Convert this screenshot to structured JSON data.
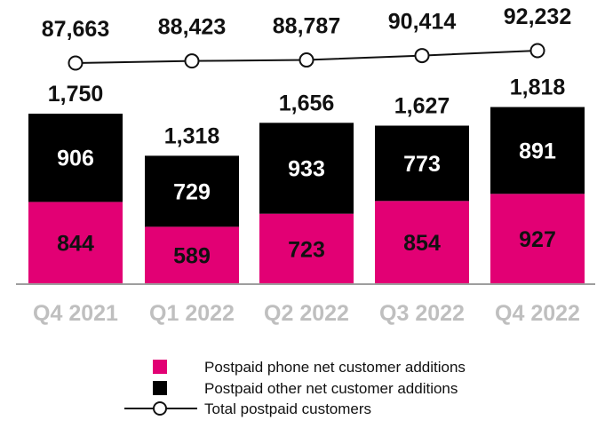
{
  "chart_data": {
    "type": "bar",
    "stacked": true,
    "categories": [
      "Q4 2021",
      "Q1 2022",
      "Q2 2022",
      "Q3 2022",
      "Q4 2022"
    ],
    "series": [
      {
        "name": "Postpaid phone net customer additions",
        "values": [
          844,
          589,
          723,
          854,
          927
        ],
        "color": "#e20074"
      },
      {
        "name": "Postpaid other net customer additions",
        "values": [
          906,
          729,
          933,
          773,
          891
        ],
        "color": "#000000"
      }
    ],
    "totals": [
      "1,750",
      "1,318",
      "1,656",
      "1,627",
      "1,818"
    ],
    "line_series": {
      "name": "Total postpaid customers",
      "values": [
        87663,
        88423,
        88787,
        90414,
        92232
      ],
      "labels": [
        "87,663",
        "88,423",
        "88,787",
        "90,414",
        "92,232"
      ]
    },
    "legend": {
      "position": "bottom-center",
      "items": [
        "Postpaid phone net customer additions",
        "Postpaid other net customer additions",
        "Total postpaid customers"
      ]
    }
  }
}
